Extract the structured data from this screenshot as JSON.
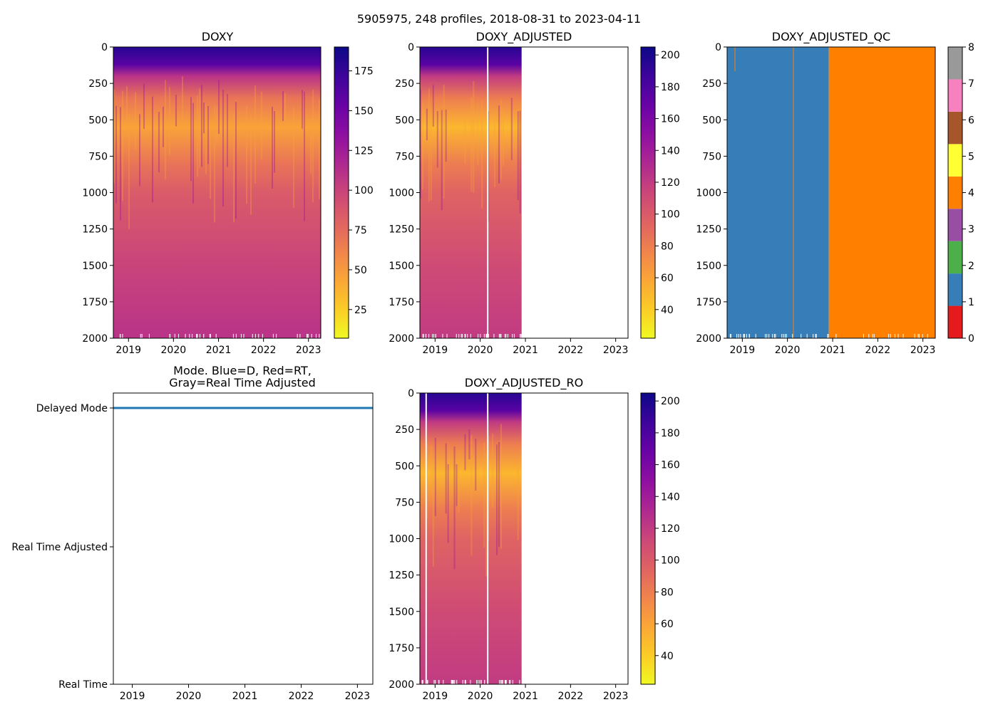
{
  "figure_title": "5905975, 248 profiles, 2018-08-31 to 2023-04-11",
  "chart_data": [
    {
      "id": "doxy",
      "type": "heatmap",
      "title": "DOXY",
      "xlabel": "",
      "ylabel": "",
      "x_ticks": [
        "2019",
        "2020",
        "2021",
        "2022",
        "2023"
      ],
      "y_ticks": [
        "0",
        "250",
        "500",
        "750",
        "1000",
        "1250",
        "1500",
        "1750",
        "2000"
      ],
      "ylim": [
        2000,
        0
      ],
      "xlim": [
        "2018-08-31",
        "2023-04-11"
      ],
      "data_extent": [
        "2018-08-31",
        "2023-04-11"
      ],
      "colormap": "plasma_r",
      "colorbar_range": [
        7,
        190
      ],
      "colorbar_ticks": [
        "25",
        "50",
        "75",
        "100",
        "125",
        "150",
        "175"
      ],
      "colorbar_tick_values": [
        25,
        50,
        75,
        100,
        125,
        150,
        175
      ],
      "gaps": [],
      "depth_profile": [
        {
          "depth": 0,
          "value": 180
        },
        {
          "depth": 120,
          "value": 160
        },
        {
          "depth": 200,
          "value": 110
        },
        {
          "depth": 350,
          "value": 70
        },
        {
          "depth": 550,
          "value": 45
        },
        {
          "depth": 800,
          "value": 70
        },
        {
          "depth": 1000,
          "value": 85
        },
        {
          "depth": 1500,
          "value": 100
        },
        {
          "depth": 2000,
          "value": 110
        }
      ]
    },
    {
      "id": "doxy_adjusted",
      "type": "heatmap",
      "title": "DOXY_ADJUSTED",
      "x_ticks": [
        "2019",
        "2020",
        "2021",
        "2022",
        "2023"
      ],
      "y_ticks": [
        "0",
        "250",
        "500",
        "750",
        "1000",
        "1250",
        "1500",
        "1750",
        "2000"
      ],
      "ylim": [
        2000,
        0
      ],
      "xlim": [
        "2018-08-31",
        "2023-04-11"
      ],
      "data_extent": [
        "2018-08-31",
        "2020-12-01"
      ],
      "colormap": "plasma_r",
      "colorbar_range": [
        22,
        205
      ],
      "colorbar_ticks": [
        "40",
        "60",
        "80",
        "100",
        "120",
        "140",
        "160",
        "180",
        "200"
      ],
      "colorbar_tick_values": [
        40,
        60,
        80,
        100,
        120,
        140,
        160,
        180,
        200
      ],
      "gaps": [
        [
          "2020-02-25",
          "2020-03-05"
        ]
      ],
      "depth_profile": [
        {
          "depth": 0,
          "value": 195
        },
        {
          "depth": 120,
          "value": 175
        },
        {
          "depth": 200,
          "value": 120
        },
        {
          "depth": 350,
          "value": 80
        },
        {
          "depth": 550,
          "value": 50
        },
        {
          "depth": 800,
          "value": 80
        },
        {
          "depth": 1000,
          "value": 95
        },
        {
          "depth": 1500,
          "value": 110
        },
        {
          "depth": 2000,
          "value": 120
        }
      ]
    },
    {
      "id": "doxy_adjusted_qc",
      "type": "heatmap",
      "title": "DOXY_ADJUSTED_QC",
      "x_ticks": [
        "2019",
        "2020",
        "2021",
        "2022",
        "2023"
      ],
      "y_ticks": [
        "0",
        "250",
        "500",
        "750",
        "1000",
        "1250",
        "1500",
        "1750",
        "2000"
      ],
      "ylim": [
        2000,
        0
      ],
      "xlim": [
        "2018-08-31",
        "2023-04-11"
      ],
      "segments": [
        {
          "from": "2018-08-31",
          "to": "2020-12-01",
          "qc": 1
        },
        {
          "from": "2020-12-01",
          "to": "2023-04-11",
          "qc": 4
        }
      ],
      "colorbar_categories": [
        {
          "value": 0,
          "color": "#e41a1c"
        },
        {
          "value": 1,
          "color": "#377eb8"
        },
        {
          "value": 2,
          "color": "#4daf4a"
        },
        {
          "value": 3,
          "color": "#984ea3"
        },
        {
          "value": 4,
          "color": "#ff7f00"
        },
        {
          "value": 5,
          "color": "#ffff33"
        },
        {
          "value": 6,
          "color": "#a65628"
        },
        {
          "value": 7,
          "color": "#f781bf"
        },
        {
          "value": 8,
          "color": "#999999"
        }
      ],
      "colorbar_ticks": [
        "0",
        "1",
        "2",
        "3",
        "4",
        "5",
        "6",
        "7",
        "8"
      ]
    },
    {
      "id": "mode",
      "type": "line",
      "title_line1": "Mode. Blue=D, Red=RT,",
      "title_line2": "Gray=Real Time Adjusted",
      "x_ticks": [
        "2019",
        "2020",
        "2021",
        "2022",
        "2023"
      ],
      "y_categories": [
        "Delayed Mode",
        "Real Time Adjusted",
        "Real Time"
      ],
      "series": [
        {
          "name": "Delayed Mode",
          "color": "#1f77b4",
          "from": "2018-08-31",
          "to": "2023-04-11",
          "level": "Delayed Mode"
        }
      ]
    },
    {
      "id": "doxy_adjusted_ro",
      "type": "heatmap",
      "title": "DOXY_ADJUSTED_RO",
      "x_ticks": [
        "2019",
        "2020",
        "2021",
        "2022",
        "2023"
      ],
      "y_ticks": [
        "0",
        "250",
        "500",
        "750",
        "1000",
        "1250",
        "1500",
        "1750",
        "2000"
      ],
      "ylim": [
        2000,
        0
      ],
      "xlim": [
        "2018-08-31",
        "2023-04-11"
      ],
      "data_extent": [
        "2018-08-31",
        "2020-12-01"
      ],
      "colormap": "plasma_r",
      "colorbar_range": [
        22,
        205
      ],
      "colorbar_ticks": [
        "40",
        "60",
        "80",
        "100",
        "120",
        "140",
        "160",
        "180",
        "200"
      ],
      "colorbar_tick_values": [
        40,
        60,
        80,
        100,
        120,
        140,
        160,
        180,
        200
      ],
      "gaps": [
        [
          "2018-10-15",
          "2018-10-22"
        ],
        [
          "2020-02-25",
          "2020-03-05"
        ]
      ],
      "depth_profile": [
        {
          "depth": 0,
          "value": 195
        },
        {
          "depth": 120,
          "value": 175
        },
        {
          "depth": 200,
          "value": 120
        },
        {
          "depth": 350,
          "value": 80
        },
        {
          "depth": 550,
          "value": 50
        },
        {
          "depth": 800,
          "value": 80
        },
        {
          "depth": 1000,
          "value": 95
        },
        {
          "depth": 1500,
          "value": 110
        },
        {
          "depth": 2000,
          "value": 120
        }
      ]
    }
  ]
}
